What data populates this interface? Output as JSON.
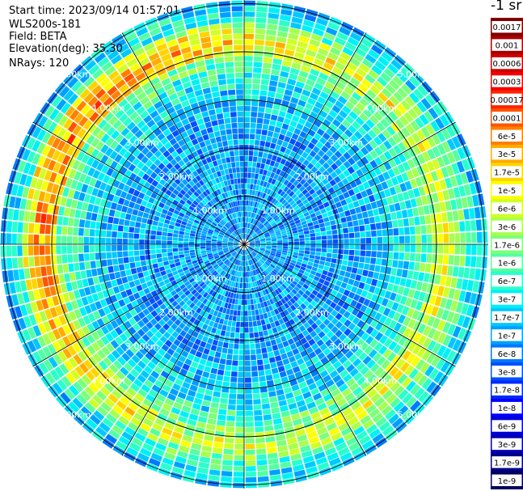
{
  "info": {
    "start_time": "Start time: 2023/09/14 01:57:01",
    "instrument": "WLS200s-181",
    "field": "Field: BETA",
    "elevation": "Elevation(deg): 35.30",
    "nrays": "NRays: 120"
  },
  "colorbar": {
    "title": "-1 sr",
    "labels": [
      "0.0017",
      "0.001",
      "0.0006",
      "0.0003",
      "0.00017",
      "0.0001",
      "6e-5",
      "3e-5",
      "1.7e-5",
      "1e-5",
      "6e-6",
      "3e-6",
      "1.7e-6",
      "1e-6",
      "6e-7",
      "3e-7",
      "1.7e-7",
      "1e-7",
      "6e-8",
      "3e-8",
      "1.7e-8",
      "1e-8",
      "6e-9",
      "3e-9",
      "1.7e-9",
      "1e-9"
    ],
    "colors": [
      "#800000",
      "#a80000",
      "#cc0000",
      "#f50000",
      "#ff2400",
      "#ff5400",
      "#ff8000",
      "#ffac00",
      "#ffd400",
      "#fcff00",
      "#d0ff26",
      "#a8ff4e",
      "#7cff7a",
      "#54ffa2",
      "#2affcc",
      "#00f0f6",
      "#00c8ff",
      "#00a0ff",
      "#0078ff",
      "#0050ff",
      "#0028ff",
      "#0000ff",
      "#0000d8",
      "#0000b0",
      "#000088",
      "#000060"
    ]
  },
  "chart_data": {
    "type": "heatmap",
    "projection": "polar (PPI scan)",
    "rays": 120,
    "range_rings_km": [
      1,
      2,
      3,
      4,
      5
    ],
    "range_ring_labels": [
      "1.00km",
      "2.00km",
      "3.00km",
      "4.00km",
      "5.00km"
    ],
    "azimuth_lines": 12,
    "color_scale": "log",
    "value_range": [
      1e-09,
      0.0017
    ],
    "value_by_range_km": [
      {
        "range_km": 0.5,
        "beta": 1e-07
      },
      {
        "range_km": 1.5,
        "beta": 1e-07
      },
      {
        "range_km": 2.5,
        "beta": 1e-07
      },
      {
        "range_km": 3.5,
        "beta": 4e-07
      },
      {
        "range_km": 4.2,
        "beta": 6e-06
      },
      {
        "range_km": 4.8,
        "beta": 3e-07
      },
      {
        "range_km": 5.5,
        "beta": 5e-08
      }
    ]
  }
}
